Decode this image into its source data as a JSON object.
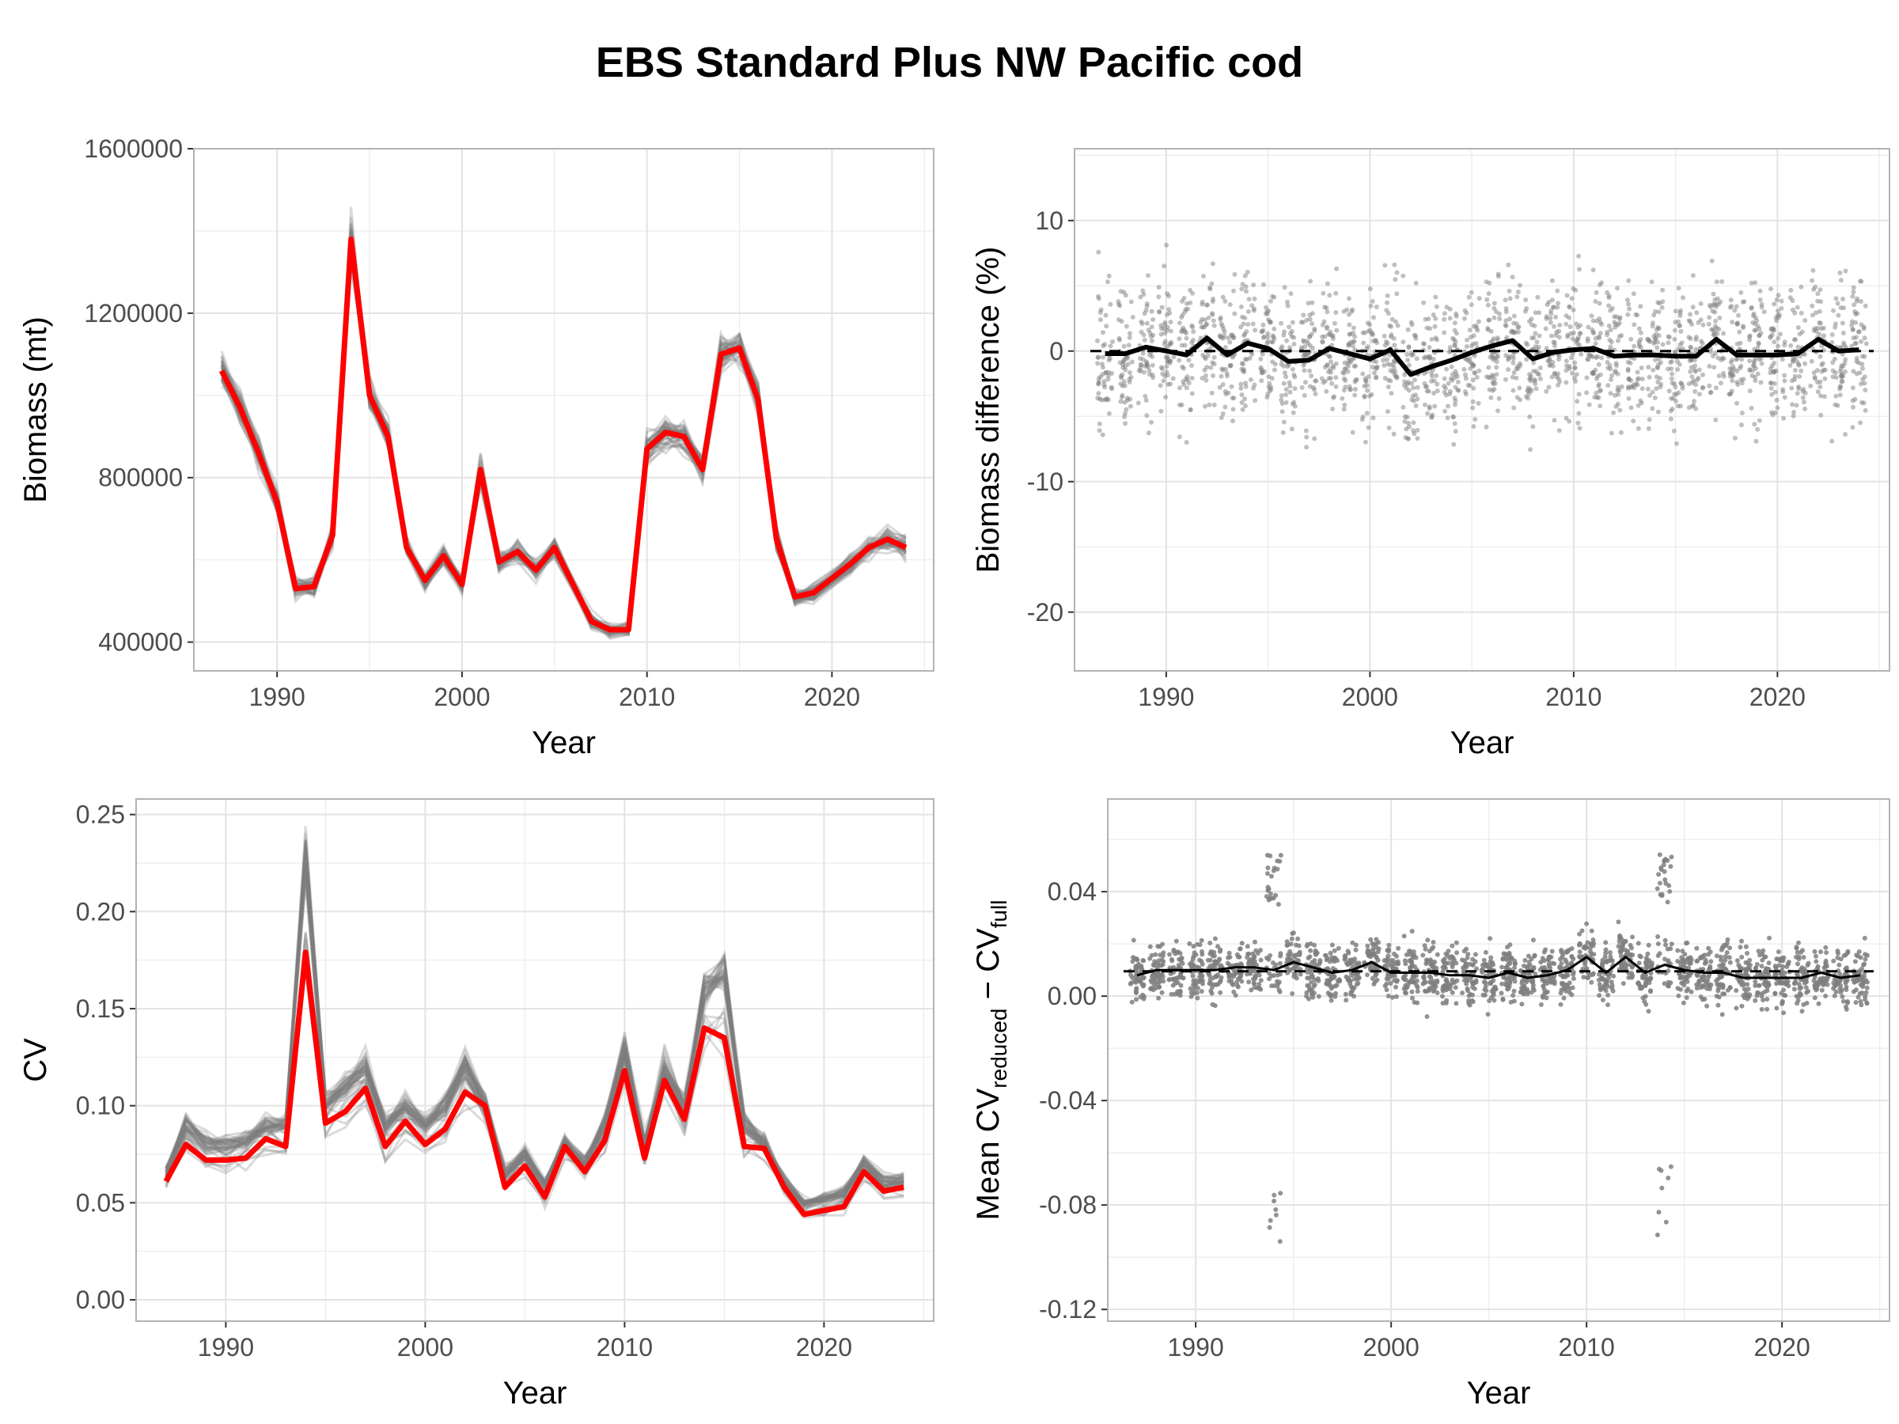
{
  "title": "EBS Standard Plus NW Pacific cod",
  "colors": {
    "highlight": "#ff0000",
    "ensemble": "#7f7f7f",
    "mean": "#000000",
    "grid": "#ebebeb",
    "panel_border": "#b3b3b3"
  },
  "chart_data": [
    {
      "type": "line",
      "xlabel": "Year",
      "ylabel": "Biomass (mt)",
      "xlim": [
        1985.5,
        2025.5
      ],
      "ylim": [
        330000,
        1600000
      ],
      "x_ticks": [
        1990,
        2000,
        2010,
        2020
      ],
      "y_ticks": [
        400000,
        800000,
        1200000,
        1600000
      ],
      "x": [
        1987,
        1988,
        1989,
        1990,
        1991,
        1992,
        1993,
        1994,
        1995,
        1996,
        1997,
        1998,
        1999,
        2000,
        2001,
        2002,
        2003,
        2004,
        2005,
        2007,
        2008,
        2009,
        2010,
        2011,
        2012,
        2013,
        2014,
        2015,
        2016,
        2017,
        2018,
        2019,
        2021,
        2022,
        2023,
        2024
      ],
      "series": [
        {
          "role": "ensemble",
          "values": [
            1060000,
            970000,
            860000,
            740000,
            530000,
            535000,
            660000,
            1380000,
            1000000,
            900000,
            630000,
            550000,
            610000,
            540000,
            820000,
            595000,
            620000,
            575000,
            630000,
            450000,
            430000,
            430000,
            870000,
            910000,
            900000,
            820000,
            1100000,
            1115000,
            990000,
            650000,
            510000,
            520000,
            590000,
            630000,
            650000,
            630000
          ]
        },
        {
          "role": "highlight",
          "values": [
            1060000,
            970000,
            860000,
            740000,
            530000,
            535000,
            660000,
            1380000,
            1000000,
            900000,
            630000,
            550000,
            610000,
            540000,
            820000,
            595000,
            620000,
            575000,
            630000,
            450000,
            430000,
            430000,
            870000,
            910000,
            900000,
            820000,
            1100000,
            1115000,
            990000,
            650000,
            510000,
            520000,
            590000,
            630000,
            650000,
            630000
          ]
        }
      ]
    },
    {
      "type": "scatter",
      "xlabel": "Year",
      "ylabel": "Biomass difference (%)",
      "xlim": [
        1985.5,
        2025.5
      ],
      "ylim": [
        -24.5,
        15.5
      ],
      "x_ticks": [
        1990,
        2000,
        2010,
        2020
      ],
      "y_ticks": [
        -20,
        -10,
        0,
        10
      ],
      "reference_line": 0,
      "x": [
        1987,
        1988,
        1989,
        1990,
        1991,
        1992,
        1993,
        1994,
        1995,
        1996,
        1997,
        1998,
        1999,
        2000,
        2001,
        2002,
        2003,
        2004,
        2005,
        2006,
        2007,
        2008,
        2009,
        2010,
        2011,
        2012,
        2013,
        2014,
        2015,
        2016,
        2017,
        2018,
        2019,
        2020,
        2021,
        2022,
        2023,
        2024
      ],
      "series": [
        {
          "role": "mean",
          "values": [
            -0.2,
            -0.2,
            0.3,
            0,
            -0.3,
            1,
            -0.3,
            0.6,
            0.2,
            -0.8,
            -0.7,
            0.2,
            -0.2,
            -0.6,
            0.1,
            -1.8,
            -1.2,
            -0.7,
            -0.1,
            0.4,
            0.8,
            -0.6,
            -0.1,
            0.1,
            0.2,
            -0.4,
            -0.3,
            -0.3,
            -0.4,
            -0.4,
            0.9,
            -0.3,
            -0.3,
            -0.3,
            -0.2,
            0.9,
            0,
            0.1
          ]
        }
      ]
    },
    {
      "type": "line",
      "xlabel": "Year",
      "ylabel": "CV",
      "xlim": [
        1985.5,
        2025.5
      ],
      "ylim": [
        -0.011,
        0.258
      ],
      "x_ticks": [
        1990,
        2000,
        2010,
        2020
      ],
      "y_ticks": [
        0,
        0.05,
        0.1,
        0.15,
        0.2,
        0.25
      ],
      "y_tick_labels": [
        "0.00",
        "0.05",
        "0.10",
        "0.15",
        "0.20",
        "0.25"
      ],
      "x": [
        1987,
        1988,
        1989,
        1990,
        1991,
        1992,
        1993,
        1994,
        1995,
        1996,
        1997,
        1998,
        1999,
        2000,
        2001,
        2002,
        2003,
        2004,
        2005,
        2006,
        2007,
        2008,
        2009,
        2010,
        2011,
        2012,
        2013,
        2014,
        2015,
        2016,
        2017,
        2018,
        2019,
        2020,
        2021,
        2022,
        2023,
        2024
      ],
      "series": [
        {
          "role": "ensemble",
          "values": [
            0.065,
            0.09,
            0.08,
            0.08,
            0.082,
            0.09,
            0.09,
            0.23,
            0.1,
            0.11,
            0.12,
            0.09,
            0.1,
            0.09,
            0.1,
            0.12,
            0.1,
            0.065,
            0.075,
            0.06,
            0.08,
            0.07,
            0.09,
            0.13,
            0.08,
            0.12,
            0.1,
            0.16,
            0.17,
            0.09,
            0.08,
            0.06,
            0.05,
            0.052,
            0.055,
            0.07,
            0.06,
            0.062
          ]
        },
        {
          "role": "highlight",
          "values": [
            0.061,
            0.08,
            0.072,
            0.072,
            0.073,
            0.083,
            0.079,
            0.179,
            0.091,
            0.097,
            0.109,
            0.079,
            0.092,
            0.08,
            0.088,
            0.107,
            0.1,
            0.058,
            0.069,
            0.053,
            0.079,
            0.066,
            0.082,
            0.118,
            0.073,
            0.113,
            0.093,
            0.14,
            0.135,
            0.079,
            0.078,
            0.058,
            0.044,
            0.046,
            0.048,
            0.066,
            0.056,
            0.058
          ]
        }
      ]
    },
    {
      "type": "scatter",
      "xlabel": "Year",
      "ylabel": "Mean CVreduced − CVfull",
      "ylabel_parts": {
        "prefix": "Mean CV",
        "sub1": "reduced",
        "mid": " − CV",
        "sub2": "full"
      },
      "xlim": [
        1985.5,
        2025.5
      ],
      "ylim": [
        -0.1245,
        0.0755
      ],
      "x_ticks": [
        1990,
        2000,
        2010,
        2020
      ],
      "y_ticks": [
        -0.12,
        -0.08,
        -0.04,
        0,
        0.04
      ],
      "y_tick_labels": [
        "-0.12",
        "-0.08",
        "-0.04",
        "0.00",
        "0.04"
      ],
      "reference_line": 0.0095,
      "x": [
        1987,
        1988,
        1989,
        1990,
        1991,
        1992,
        1993,
        1994,
        1995,
        1996,
        1997,
        1998,
        1999,
        2000,
        2001,
        2002,
        2003,
        2004,
        2005,
        2006,
        2007,
        2008,
        2009,
        2010,
        2011,
        2012,
        2013,
        2014,
        2015,
        2016,
        2017,
        2018,
        2019,
        2020,
        2021,
        2022,
        2023,
        2024
      ],
      "series": [
        {
          "role": "mean",
          "values": [
            0.008,
            0.01,
            0.01,
            0.01,
            0.01,
            0.011,
            0.011,
            0.01,
            0.013,
            0.011,
            0.009,
            0.01,
            0.013,
            0.009,
            0.009,
            0.009,
            0.008,
            0.008,
            0.007,
            0.009,
            0.007,
            0.008,
            0.01,
            0.015,
            0.009,
            0.015,
            0.009,
            0.012,
            0.01,
            0.009,
            0.009,
            0.007,
            0.007,
            0.007,
            0.007,
            0.009,
            0.007,
            0.008
          ]
        }
      ]
    }
  ]
}
